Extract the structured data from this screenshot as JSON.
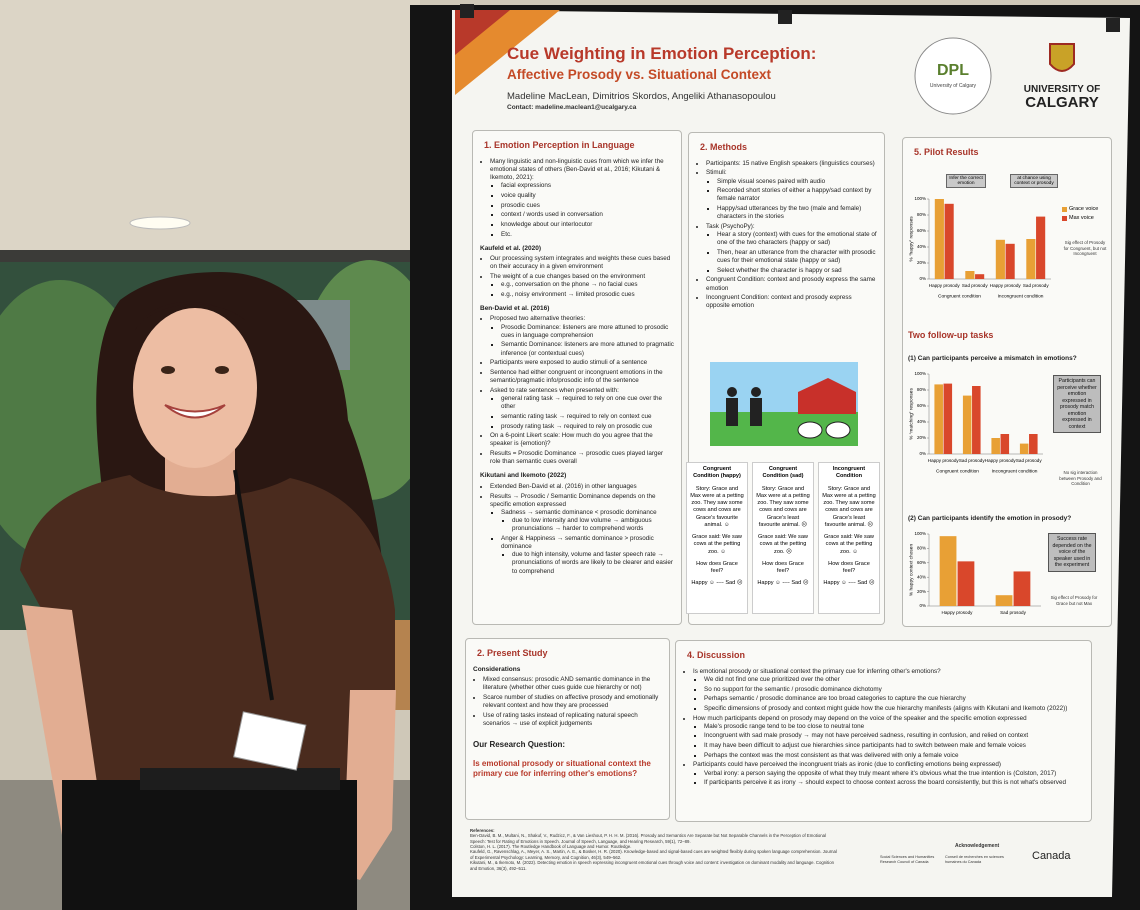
{
  "poster": {
    "title": "Cue Weighting in Emotion Perception:",
    "subtitle": "Affective Prosody vs. Situational Context",
    "authors": "Madeline MacLean, Dimitrios Skordos, Angeliki Athanasopoulou",
    "contact": "Contact: madeline.maclean1@ucalgary.ca",
    "dpl": {
      "name": "DPL",
      "org": "University of Calgary"
    },
    "university": [
      "UNIVERSITY OF",
      "CALGARY"
    ],
    "intro": {
      "heading": "1. Emotion Perception in Language",
      "blocks": [
        {
          "items": [
            {
              "text": "Many linguistic and non-linguistic cues from which we infer the emotional states of others (Ben-David et al., 2016; Kikutani & Ikemoto, 2021):",
              "items": [
                "facial expressions",
                "voice quality",
                "prosodic cues",
                "context / words used in conversation",
                "knowledge about our interlocutor",
                "Etc."
              ]
            }
          ]
        },
        {
          "subheading": "Kaufeld et al. (2020)",
          "items": [
            "Our processing system integrates and weights these cues based on their accuracy in a given environment",
            {
              "text": "The weight of a cue changes based on the environment",
              "items": [
                "e.g., conversation on the phone → no facial cues",
                "e.g., noisy environment → limited prosodic cues"
              ]
            }
          ]
        },
        {
          "subheading": "Ben-David et al. (2016)",
          "items": [
            {
              "text": "Proposed two alternative theories:",
              "items": [
                "Prosodic Dominance: listeners are more attuned to prosodic cues in language comprehension",
                "Semantic Dominance: listeners are more attuned to pragmatic inference (or contextual cues)"
              ]
            },
            "Participants were exposed to audio stimuli of a sentence",
            "Sentence had either congruent or incongruent emotions in the semantic/pragmatic info/prosodic info of the sentence",
            {
              "text": "Asked to rate sentences when presented with:",
              "items": [
                "general rating task → required to rely on one cue over the other",
                "semantic rating task → required to rely on context cue",
                "prosody rating task → required to rely on prosodic cue"
              ]
            },
            "On a 6-point Likert scale: How much do you agree that the speaker is {emotion}?",
            "Results = Prosodic Dominance → prosodic cues played larger role than semantic cues overall"
          ]
        },
        {
          "subheading": "Kikutani and Ikemoto (2022)",
          "items": [
            "Extended Ben-David et al. (2016) in other languages",
            {
              "text": "Results → Prosodic / Semantic Dominance depends on the specific emotion expressed",
              "items": [
                {
                  "text": "Sadness → semantic dominance < prosodic dominance",
                  "items": [
                    "due to low intensity and low volume → ambiguous pronunciations → harder to comprehend words"
                  ]
                },
                {
                  "text": "Anger & Happiness → semantic dominance > prosodic dominance",
                  "items": [
                    "due to high intensity, volume and faster speech rate → pronunciations of words are likely to be clearer and easier to comprehend"
                  ]
                }
              ]
            }
          ]
        }
      ]
    },
    "methods": {
      "heading": "2. Methods",
      "items": [
        "Participants: 15 native English speakers (linguistics courses)",
        {
          "text": "Stimuli:",
          "items": [
            "Simple visual scenes paired with audio",
            "Recorded short stories of either a happy/sad context by female narrator",
            "Happy/sad utterances by the two (male and female) characters in the stories"
          ]
        },
        {
          "text": "Task (PsychoPy):",
          "items": [
            "Hear a story (context) with cues for the emotional state of one of the two characters (happy or sad)",
            "Then, hear an utterance from the character with prosodic cues for their emotional state (happy or sad)",
            "Select whether the character is happy or sad"
          ]
        },
        "Congruent Condition: context and prosody express the same emotion",
        "Incongruent Condition: context and prosody express opposite emotion"
      ],
      "conditions": [
        {
          "title": "Congruent Condition (happy)",
          "story": "Story: Grace and Max were at a petting zoo. They saw some cows and cows are Grace's favourite animal. ☺",
          "said": "Grace said: We saw cows at the petting zoo. ☺",
          "question": "How does Grace feel?",
          "scale": "Happy ☺ ---- Sad ☹"
        },
        {
          "title": "Congruent Condition (sad)",
          "story": "Story: Grace and Max were at a petting zoo. They saw some cows and cows are Grace's least favourite animal. ☹",
          "said": "Grace said: We saw cows at the petting zoo. ☹",
          "question": "How does Grace feel?",
          "scale": "Happy ☺ ---- Sad ☹"
        },
        {
          "title": "Incongruent Condition",
          "story": "Story: Grace and Max were at a petting zoo. They saw some cows and cows are Grace's least favourite animal. ☹",
          "said": "Grace said: We saw cows at the petting zoo. ☺",
          "question": "How does Grace feel?",
          "scale": "Happy ☺ ---- Sad ☹"
        }
      ]
    },
    "results": {
      "heading": "5. Pilot Results",
      "followup_heading": "Two follow-up tasks"
    },
    "present": {
      "heading": "2. Present Study",
      "subheading": "Considerations",
      "items": [
        "Mixed consensus: prosodic AND semantic dominance in the literature (whether other cues guide cue hierarchy or not)",
        "Scarce number of studies on affective prosody and emotionally relevant context and how they are processed",
        "Use of rating tasks instead of replicating natural speech scenarios → use of explicit judgements"
      ],
      "question_heading": "Our Research Question:",
      "question": "Is emotional prosody or situational context the primary cue for inferring other's emotions?"
    },
    "discussion": {
      "heading": "4. Discussion",
      "items": [
        {
          "text": "Is emotional prosody or situational context the primary cue for inferring other's emotions?",
          "items": [
            "We did not find one cue prioritized over the other",
            "So no support for the semantic / prosodic dominance dichotomy",
            "Perhaps semantic / prosodic dominance are too broad categories to capture the cue hierarchy",
            "Specific dimensions of prosody and context might guide how the cue hierarchy manifests (aligns with Kikutani and Ikemoto (2022))"
          ]
        },
        {
          "text": "How much participants depend on prosody may depend on the voice of the speaker and the specific emotion expressed",
          "items": [
            "Male's prosodic range tend to be too close to neutral tone",
            "Incongruent with sad male prosody → may not have perceived sadness, resulting in confusion, and relied on context",
            "It may have been difficult to adjust cue hierarchies since participants had to switch between male and female voices",
            "Perhaps the context was the most consistent as that was delivered with only a female voice"
          ]
        },
        {
          "text": "Participants could have perceived the incongruent trials as ironic (due to conflicting emotions being expressed)",
          "items": [
            "Verbal irony: a person saying the opposite of what they truly meant where it's obvious what the true intention is (Colston, 2017)",
            "If participants perceive it as irony → should expect to choose context across the board consistently, but this is not what's observed"
          ]
        }
      ]
    },
    "references": {
      "heading": "References:",
      "items": [
        "Ben-David, B. M., Multani, N., Shakuf, V., Rudzicz, F., & Van Lieshout, P. H. H. M. (2016). Prosody and Semantics Are Separate but Not Separable Channels in the Perception of Emotional Speech: Test for Rating of Emotions in Speech. Journal of Speech, Language, and Hearing Research, 59(1), 72–89.",
        "Colston, H. L. (2017). The Routledge Handbook of Language and Humor. Routledge.",
        "Kaufeld, G., Ravenschlag, A., Meyer, A. S., Martin, A. E., & Bosker, H. R. (2020). Knowledge-based and signal-based cues are weighted flexibly during spoken language comprehension. Journal of Experimental Psychology: Learning, Memory, and Cognition, 46(3), 549–562.",
        "Kikutani, M., & Ikemoto, M. (2022). Detecting emotion in speech expressing incongruent emotional cues through voice and content: investigation on dominant modality and language. Cognition and Emotion, 36(3), 492–511."
      ]
    },
    "acknowledgement": {
      "heading": "Acknowledgement",
      "sshrc": "Social Sciences and Humanities Research Council of Canada",
      "crsh": "Conseil de recherches en sciences humaines du Canada",
      "canada": "Canada"
    }
  },
  "chart_data": [
    {
      "type": "bar",
      "ylabel": "% “happy” responses",
      "categories": [
        "Happy prosody",
        "Sad prosody",
        "Happy prosody",
        "Sad prosody"
      ],
      "group_labels": [
        "Congruent condition",
        "Incongruent condition"
      ],
      "ylim": [
        0,
        100
      ],
      "yticks": [
        {
          "value": 0,
          "label": "0%"
        },
        {
          "value": 20,
          "label": "20%"
        },
        {
          "value": 40,
          "label": "40%"
        },
        {
          "value": 60,
          "label": "60%"
        },
        {
          "value": 80,
          "label": "80%"
        },
        {
          "value": 100,
          "label": "100%"
        }
      ],
      "series": [
        {
          "name": "Grace voice",
          "color": "#e8a035",
          "values": [
            100,
            10,
            49,
            50
          ]
        },
        {
          "name": "Max voice",
          "color": "#d9472b",
          "values": [
            94,
            6,
            44,
            78
          ]
        }
      ],
      "legend": "right",
      "annotations": [
        "Infer the correct emotion",
        "at chance using context or prosody"
      ],
      "note": "Sig effect of Prosody for Congruent, but not Incongruent"
    },
    {
      "type": "bar",
      "title": "(1) Can participants perceive a mismatch in emotions?",
      "ylabel": "% “matching” responses",
      "categories": [
        "Happy prosody",
        "Sad prosody",
        "Happy prosody",
        "Sad prosody"
      ],
      "group_labels": [
        "Congruent condition",
        "Incongruent condition"
      ],
      "ylim": [
        0,
        100
      ],
      "yticks": [
        {
          "value": 0,
          "label": "0%"
        },
        {
          "value": 20,
          "label": "20%"
        },
        {
          "value": 40,
          "label": "40%"
        },
        {
          "value": 60,
          "label": "60%"
        },
        {
          "value": 80,
          "label": "80%"
        },
        {
          "value": 100,
          "label": "100%"
        }
      ],
      "series": [
        {
          "color": "#e8a035",
          "values": [
            87,
            73,
            20,
            13
          ]
        },
        {
          "color": "#d9472b",
          "values": [
            88,
            85,
            25,
            25
          ]
        }
      ],
      "callout": "Participants can perceive whether emotion expressed in prosody match emotion expressed in context",
      "note": "No sig interaction between Prosody and Condition"
    },
    {
      "type": "bar",
      "title": "(2) Can participants identify the emotion in prosody?",
      "ylabel": "% happy context chosen",
      "categories": [
        "Happy prosody",
        "Sad prosody"
      ],
      "ylim": [
        0,
        100
      ],
      "yticks": [
        {
          "value": 0,
          "label": "0%"
        },
        {
          "value": 20,
          "label": "20%"
        },
        {
          "value": 40,
          "label": "40%"
        },
        {
          "value": 60,
          "label": "60%"
        },
        {
          "value": 80,
          "label": "80%"
        },
        {
          "value": 100,
          "label": "100%"
        }
      ],
      "series": [
        {
          "color": "#e8a035",
          "values": [
            97,
            15
          ]
        },
        {
          "color": "#d9472b",
          "values": [
            62,
            48
          ]
        }
      ],
      "callout": "Success rate depended on the voice of the speaker used in the experiment",
      "note": "Sig effect of Prosody for Grace but not Max"
    }
  ]
}
